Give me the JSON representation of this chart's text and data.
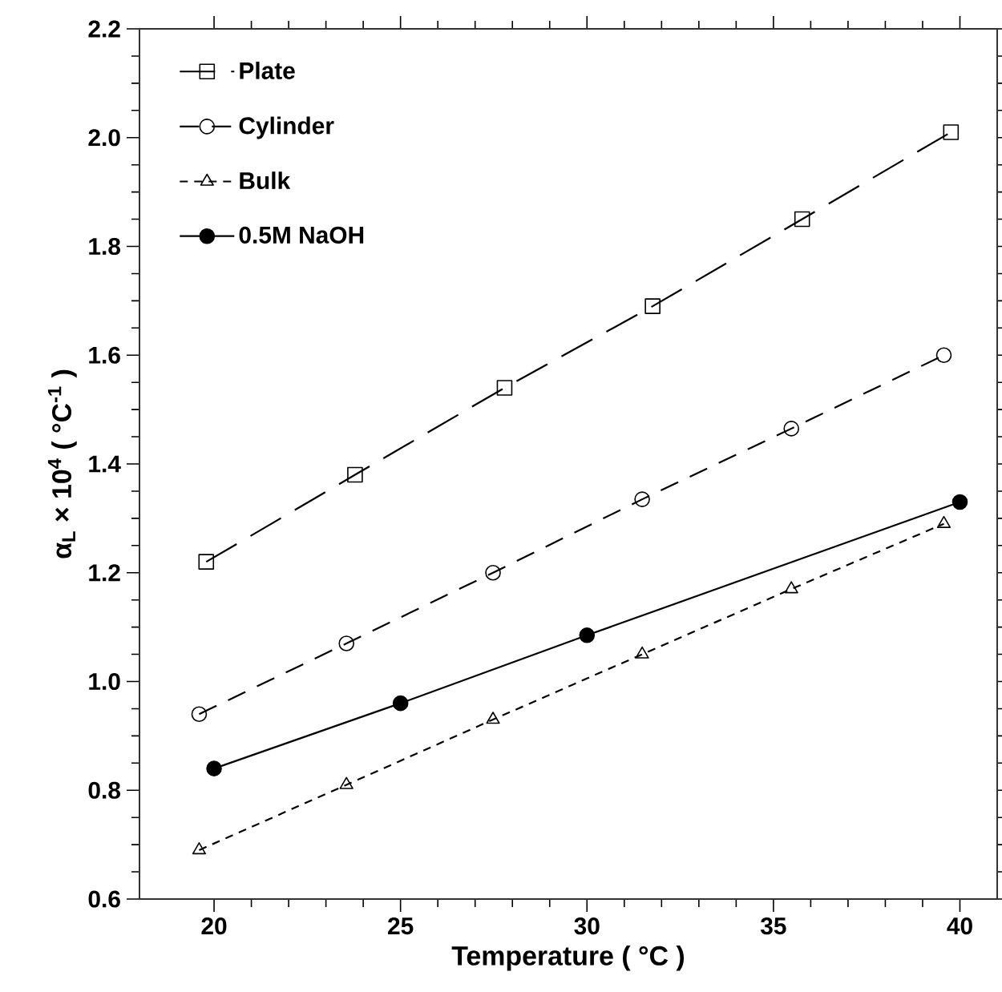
{
  "chart_data": {
    "type": "line",
    "xlabel": "Temperature ( °C )",
    "ylabel": "α$_{L}$ × 10$^{4}$ ( °C$^{-1}$ )",
    "xlim": [
      18,
      41
    ],
    "xticks": [
      20,
      25,
      30,
      35,
      40
    ],
    "ylim": [
      0.6,
      2.2
    ],
    "yticks": [
      {
        "value": 0.6,
        "label": "0.6"
      },
      {
        "value": 0.8,
        "label": "0.8"
      },
      {
        "value": 1.0,
        "label": "1.0"
      },
      {
        "value": 1.2,
        "label": "1.2"
      },
      {
        "value": 1.4,
        "label": "1.4"
      },
      {
        "value": 1.6,
        "label": "1.6"
      },
      {
        "value": 1.8,
        "label": "1.8"
      },
      {
        "value": 2.0,
        "label": "2.0"
      },
      {
        "value": 2.2,
        "label": "2.2"
      }
    ],
    "legend": "top left",
    "grid": false,
    "series": [
      {
        "name": "Plate",
        "color": "#000000",
        "marker": "square",
        "line_style": "dashed",
        "x": [
          19.79,
          23.78,
          27.79,
          31.76,
          35.77,
          39.76
        ],
        "values": [
          1.22,
          1.38,
          1.54,
          1.69,
          1.85,
          2.01
        ]
      },
      {
        "name": "Cylinder",
        "color": "#000000",
        "marker": "circle",
        "line_style": "dashed",
        "x": [
          19.6,
          23.55,
          27.48,
          31.48,
          35.48,
          39.57
        ],
        "values": [
          0.94,
          1.07,
          1.2,
          1.335,
          1.465,
          1.6
        ]
      },
      {
        "name": "Bulk",
        "color": "#000000",
        "marker": "triangle",
        "line_style": "dotted",
        "x": [
          19.6,
          23.55,
          27.48,
          31.48,
          35.48,
          39.57
        ],
        "values": [
          0.69,
          0.81,
          0.93,
          1.05,
          1.17,
          1.29
        ]
      },
      {
        "name": "0.5M NaOH",
        "color": "#000000",
        "marker": "circle",
        "line_style": "solid",
        "x": [
          20,
          25,
          30,
          40
        ],
        "values": [
          0.84,
          0.96,
          1.085,
          1.33
        ]
      }
    ]
  }
}
